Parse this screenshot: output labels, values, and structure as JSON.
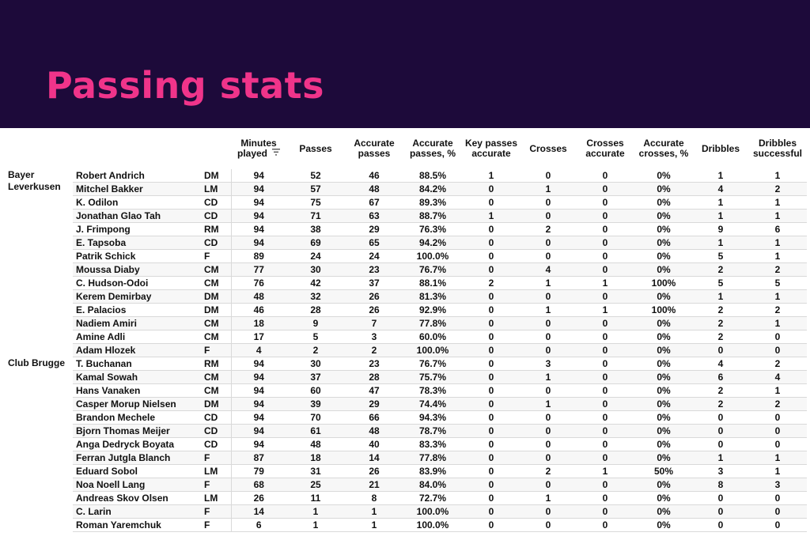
{
  "title": "Passing stats",
  "icons": {
    "sort": "sort-descending-icon"
  },
  "columns": [
    "Minutes played",
    "Passes",
    "Accurate passes",
    "Accurate passes, %",
    "Key passes accurate",
    "Crosses",
    "Crosses accurate",
    "Accurate crosses, %",
    "Dribbles",
    "Dribbles successful"
  ],
  "teams": [
    {
      "name": "Bayer Leverkusen",
      "players": [
        {
          "name": "Robert Andrich",
          "pos": "DM",
          "stats": [
            "94",
            "52",
            "46",
            "88.5%",
            "1",
            "0",
            "0",
            "0%",
            "1",
            "1"
          ]
        },
        {
          "name": "Mitchel Bakker",
          "pos": "LM",
          "stats": [
            "94",
            "57",
            "48",
            "84.2%",
            "0",
            "1",
            "0",
            "0%",
            "4",
            "2"
          ]
        },
        {
          "name": "K. Odilon",
          "pos": "CD",
          "stats": [
            "94",
            "75",
            "67",
            "89.3%",
            "0",
            "0",
            "0",
            "0%",
            "1",
            "1"
          ]
        },
        {
          "name": "Jonathan Glao Tah",
          "pos": "CD",
          "stats": [
            "94",
            "71",
            "63",
            "88.7%",
            "1",
            "0",
            "0",
            "0%",
            "1",
            "1"
          ]
        },
        {
          "name": "J. Frimpong",
          "pos": "RM",
          "stats": [
            "94",
            "38",
            "29",
            "76.3%",
            "0",
            "2",
            "0",
            "0%",
            "9",
            "6"
          ]
        },
        {
          "name": "E. Tapsoba",
          "pos": "CD",
          "stats": [
            "94",
            "69",
            "65",
            "94.2%",
            "0",
            "0",
            "0",
            "0%",
            "1",
            "1"
          ]
        },
        {
          "name": "Patrik Schick",
          "pos": "F",
          "stats": [
            "89",
            "24",
            "24",
            "100.0%",
            "0",
            "0",
            "0",
            "0%",
            "5",
            "1"
          ]
        },
        {
          "name": "Moussa Diaby",
          "pos": "CM",
          "stats": [
            "77",
            "30",
            "23",
            "76.7%",
            "0",
            "4",
            "0",
            "0%",
            "2",
            "2"
          ]
        },
        {
          "name": "C. Hudson-Odoi",
          "pos": "CM",
          "stats": [
            "76",
            "42",
            "37",
            "88.1%",
            "2",
            "1",
            "1",
            "100%",
            "5",
            "5"
          ]
        },
        {
          "name": "Kerem Demirbay",
          "pos": "DM",
          "stats": [
            "48",
            "32",
            "26",
            "81.3%",
            "0",
            "0",
            "0",
            "0%",
            "1",
            "1"
          ]
        },
        {
          "name": "E. Palacios",
          "pos": "DM",
          "stats": [
            "46",
            "28",
            "26",
            "92.9%",
            "0",
            "1",
            "1",
            "100%",
            "2",
            "2"
          ]
        },
        {
          "name": "Nadiem Amiri",
          "pos": "CM",
          "stats": [
            "18",
            "9",
            "7",
            "77.8%",
            "0",
            "0",
            "0",
            "0%",
            "2",
            "1"
          ]
        },
        {
          "name": "Amine Adli",
          "pos": "CM",
          "stats": [
            "17",
            "5",
            "3",
            "60.0%",
            "0",
            "0",
            "0",
            "0%",
            "2",
            "0"
          ]
        },
        {
          "name": "Adam Hlozek",
          "pos": "F",
          "stats": [
            "4",
            "2",
            "2",
            "100.0%",
            "0",
            "0",
            "0",
            "0%",
            "0",
            "0"
          ]
        }
      ]
    },
    {
      "name": "Club Brugge",
      "players": [
        {
          "name": "T. Buchanan",
          "pos": "RM",
          "stats": [
            "94",
            "30",
            "23",
            "76.7%",
            "0",
            "3",
            "0",
            "0%",
            "4",
            "2"
          ]
        },
        {
          "name": "Kamal Sowah",
          "pos": "CM",
          "stats": [
            "94",
            "37",
            "28",
            "75.7%",
            "0",
            "1",
            "0",
            "0%",
            "6",
            "4"
          ]
        },
        {
          "name": "Hans Vanaken",
          "pos": "CM",
          "stats": [
            "94",
            "60",
            "47",
            "78.3%",
            "0",
            "0",
            "0",
            "0%",
            "2",
            "1"
          ]
        },
        {
          "name": "Casper Morup Nielsen",
          "pos": "DM",
          "stats": [
            "94",
            "39",
            "29",
            "74.4%",
            "0",
            "1",
            "0",
            "0%",
            "2",
            "2"
          ]
        },
        {
          "name": "Brandon Mechele",
          "pos": "CD",
          "stats": [
            "94",
            "70",
            "66",
            "94.3%",
            "0",
            "0",
            "0",
            "0%",
            "0",
            "0"
          ]
        },
        {
          "name": "Bjorn Thomas Meijer",
          "pos": "CD",
          "stats": [
            "94",
            "61",
            "48",
            "78.7%",
            "0",
            "0",
            "0",
            "0%",
            "0",
            "0"
          ]
        },
        {
          "name": "Anga Dedryck Boyata",
          "pos": "CD",
          "stats": [
            "94",
            "48",
            "40",
            "83.3%",
            "0",
            "0",
            "0",
            "0%",
            "0",
            "0"
          ]
        },
        {
          "name": "Ferran Jutgla Blanch",
          "pos": "F",
          "stats": [
            "87",
            "18",
            "14",
            "77.8%",
            "0",
            "0",
            "0",
            "0%",
            "1",
            "1"
          ]
        },
        {
          "name": "Eduard Sobol",
          "pos": "LM",
          "stats": [
            "79",
            "31",
            "26",
            "83.9%",
            "0",
            "2",
            "1",
            "50%",
            "3",
            "1"
          ]
        },
        {
          "name": "Noa Noell Lang",
          "pos": "F",
          "stats": [
            "68",
            "25",
            "21",
            "84.0%",
            "0",
            "0",
            "0",
            "0%",
            "8",
            "3"
          ]
        },
        {
          "name": "Andreas Skov Olsen",
          "pos": "LM",
          "stats": [
            "26",
            "11",
            "8",
            "72.7%",
            "0",
            "1",
            "0",
            "0%",
            "0",
            "0"
          ]
        },
        {
          "name": "C. Larin",
          "pos": "F",
          "stats": [
            "14",
            "1",
            "1",
            "100.0%",
            "0",
            "0",
            "0",
            "0%",
            "0",
            "0"
          ]
        },
        {
          "name": "Roman Yaremchuk",
          "pos": "F",
          "stats": [
            "6",
            "1",
            "1",
            "100.0%",
            "0",
            "0",
            "0",
            "0%",
            "0",
            "0"
          ]
        }
      ]
    }
  ]
}
